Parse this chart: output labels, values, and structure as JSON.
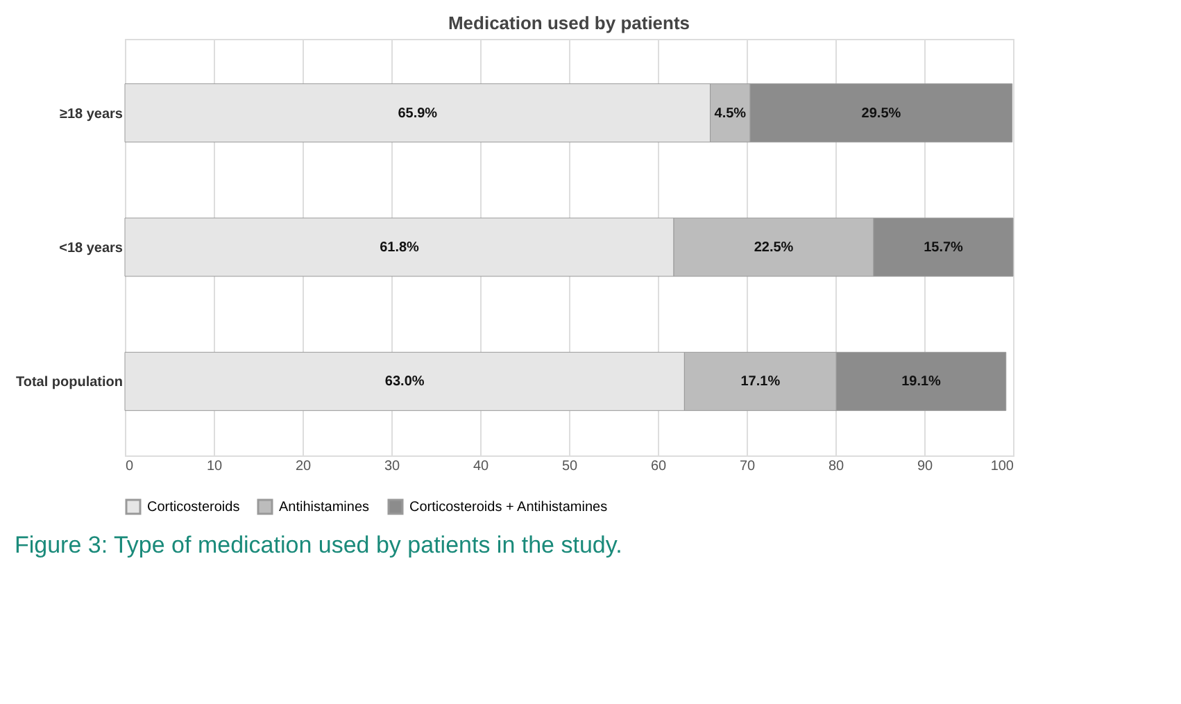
{
  "chart_data": {
    "type": "bar",
    "orientation": "horizontal",
    "stacked": true,
    "title": "Medication used by patients",
    "categories": [
      "≥18 years",
      "<18 years",
      "Total population"
    ],
    "series": [
      {
        "name": "Corticosteroids",
        "color": "#e6e6e6",
        "values": [
          65.9,
          61.8,
          63.0
        ],
        "value_labels": [
          "65.9%",
          "61.8%",
          "63.0%"
        ]
      },
      {
        "name": "Antihistamines",
        "color": "#bcbcbc",
        "values": [
          4.5,
          22.5,
          17.1
        ],
        "value_labels": [
          "4.5%",
          "22.5%",
          "17.1%"
        ]
      },
      {
        "name": "Corticosteroids + Antihistamines",
        "color": "#8c8c8c",
        "values": [
          29.5,
          15.7,
          19.1
        ],
        "value_labels": [
          "29.5%",
          "15.7%",
          "19.1%"
        ]
      }
    ],
    "xlim": [
      0,
      100
    ],
    "xticks": [
      0,
      10,
      20,
      30,
      40,
      50,
      60,
      70,
      80,
      90,
      100
    ],
    "grid": "x",
    "legend": "bottom",
    "annotations": [
      "Figure 3: Type of medication used by patients in the study."
    ]
  }
}
